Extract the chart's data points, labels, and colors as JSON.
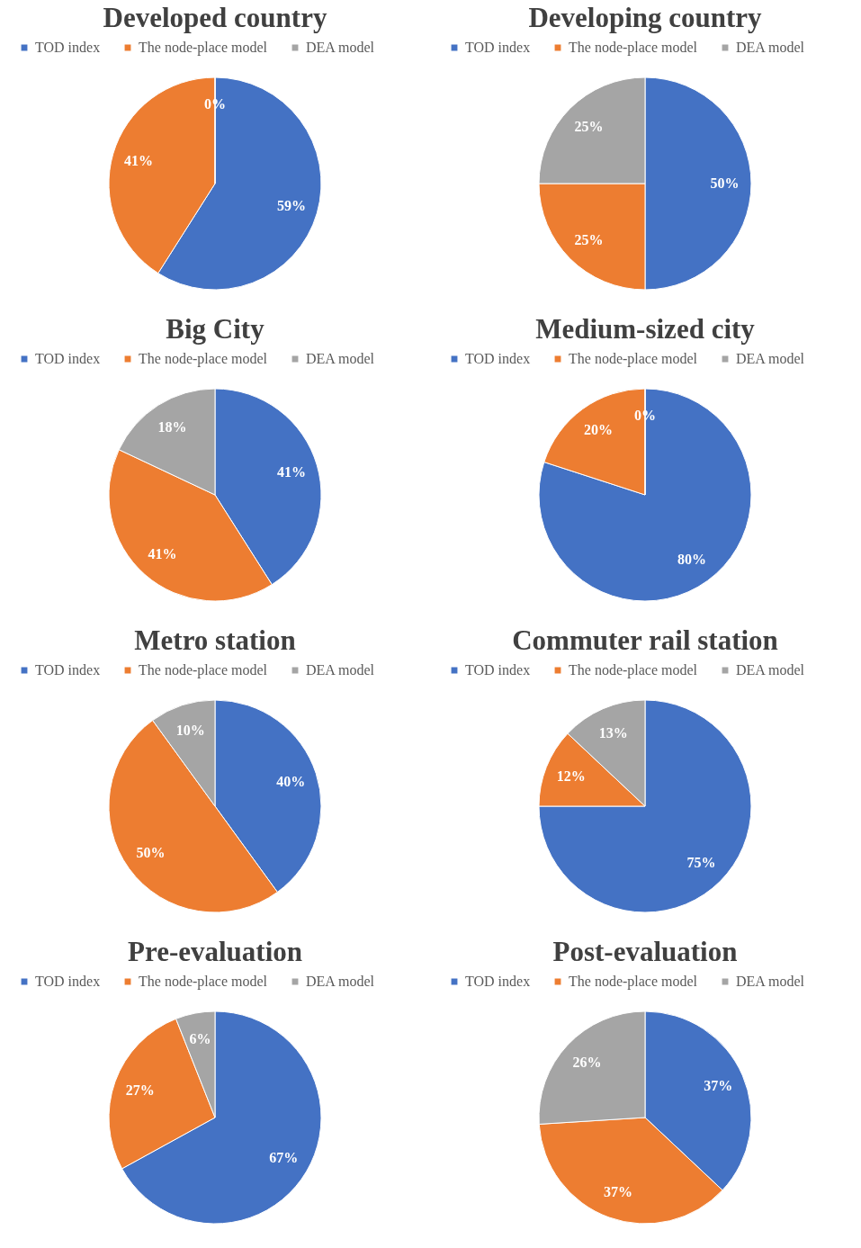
{
  "chart_data": [
    {
      "type": "pie",
      "title": "Developed country",
      "categories": [
        "TOD index",
        "The node-place model",
        "DEA model"
      ],
      "values": [
        59,
        41,
        0
      ],
      "value_labels": [
        "59%",
        "41%",
        "0%"
      ],
      "colors": [
        "#4472c4",
        "#ed7d31",
        "#a5a5a5"
      ],
      "legend": "top"
    },
    {
      "type": "pie",
      "title": "Developing country",
      "categories": [
        "TOD index",
        "The node-place model",
        "DEA model"
      ],
      "values": [
        50,
        25,
        25
      ],
      "value_labels": [
        "50%",
        "25%",
        "25%"
      ],
      "colors": [
        "#4472c4",
        "#ed7d31",
        "#a5a5a5"
      ],
      "legend": "top"
    },
    {
      "type": "pie",
      "title": "Big City",
      "categories": [
        "TOD index",
        "The node-place model",
        "DEA model"
      ],
      "values": [
        41,
        41,
        18
      ],
      "value_labels": [
        "41%",
        "41%",
        "18%"
      ],
      "colors": [
        "#4472c4",
        "#ed7d31",
        "#a5a5a5"
      ],
      "legend": "top"
    },
    {
      "type": "pie",
      "title": "Medium-sized city",
      "categories": [
        "TOD index",
        "The node-place model",
        "DEA model"
      ],
      "values": [
        80,
        20,
        0
      ],
      "value_labels": [
        "80%",
        "20%",
        "0%"
      ],
      "colors": [
        "#4472c4",
        "#ed7d31",
        "#a5a5a5"
      ],
      "legend": "top"
    },
    {
      "type": "pie",
      "title": "Metro station",
      "categories": [
        "TOD index",
        "The node-place model",
        "DEA model"
      ],
      "values": [
        40,
        50,
        10
      ],
      "value_labels": [
        "40%",
        "50%",
        "10%"
      ],
      "colors": [
        "#4472c4",
        "#ed7d31",
        "#a5a5a5"
      ],
      "legend": "top"
    },
    {
      "type": "pie",
      "title": "Commuter rail station",
      "categories": [
        "TOD index",
        "The node-place model",
        "DEA model"
      ],
      "values": [
        75,
        12,
        13
      ],
      "value_labels": [
        "75%",
        "12%",
        "13%"
      ],
      "colors": [
        "#4472c4",
        "#ed7d31",
        "#a5a5a5"
      ],
      "legend": "top"
    },
    {
      "type": "pie",
      "title": "Pre-evaluation",
      "categories": [
        "TOD index",
        "The node-place model",
        "DEA model"
      ],
      "values": [
        67,
        27,
        6
      ],
      "value_labels": [
        "67%",
        "27%",
        "6%"
      ],
      "colors": [
        "#4472c4",
        "#ed7d31",
        "#a5a5a5"
      ],
      "legend": "top"
    },
    {
      "type": "pie",
      "title": "Post-evaluation",
      "categories": [
        "TOD index",
        "The node-place model",
        "DEA model"
      ],
      "values": [
        37,
        37,
        26
      ],
      "value_labels": [
        "37%",
        "37%",
        "26%"
      ],
      "colors": [
        "#4472c4",
        "#ed7d31",
        "#a5a5a5"
      ],
      "legend": "top"
    }
  ]
}
